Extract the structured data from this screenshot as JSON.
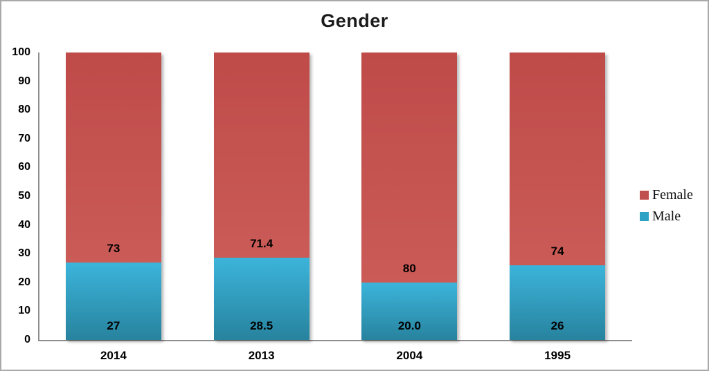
{
  "frame": {
    "border_color": "#a9a9a9",
    "background": "#ffffff"
  },
  "axis": {
    "color": "#8e8e8e"
  },
  "chart_data": {
    "type": "bar",
    "stacked": true,
    "title": "Gender",
    "categories": [
      "2014",
      "2013",
      "2004",
      "1995"
    ],
    "series": [
      {
        "name": "Male",
        "values": [
          27,
          28.5,
          20,
          26
        ],
        "labels": [
          "27",
          "28.5",
          "20.0",
          "26"
        ],
        "color_top": "#3cb4db",
        "color_bottom": "#27839e"
      },
      {
        "name": "Female",
        "values": [
          73,
          71.4,
          80,
          74
        ],
        "labels": [
          "73",
          "71.4",
          "80",
          "74"
        ],
        "color_top": "#bf4b49",
        "color_bottom": "#ca5b57"
      }
    ],
    "ylim": [
      0,
      100
    ],
    "yticks": [
      0,
      10,
      20,
      30,
      40,
      50,
      60,
      70,
      80,
      90,
      100
    ],
    "grid": false,
    "legend_position": "right",
    "legend": [
      {
        "label": "Female",
        "color": "#c0504d"
      },
      {
        "label": "Male",
        "color": "#2ea2c5"
      }
    ]
  }
}
